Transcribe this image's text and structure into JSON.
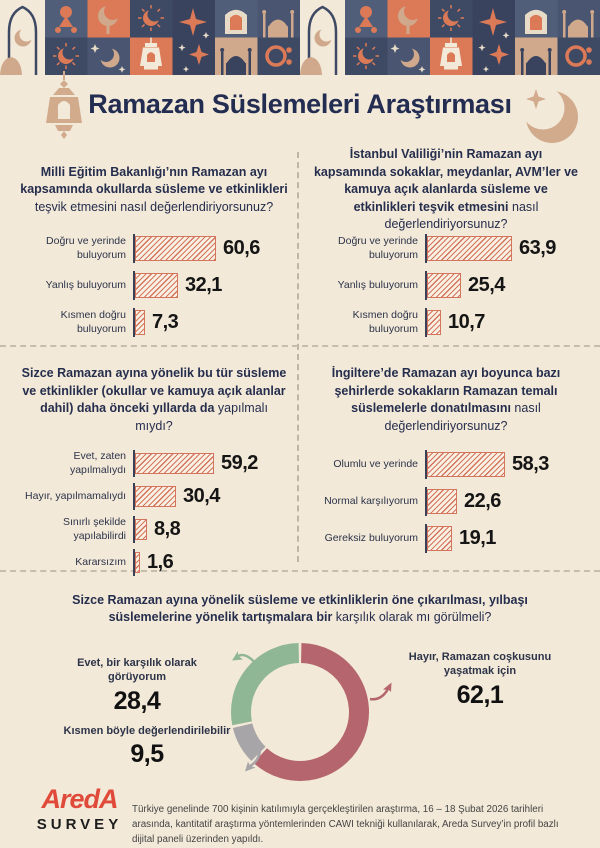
{
  "header": {
    "title": "Ramazan Süslemeleri Araştırması",
    "icons": [
      "tile-pattern-ramadan",
      "lantern-icon",
      "crescent-star-icon"
    ]
  },
  "colors": {
    "background": "#f2e9d8",
    "navy_text": "#232c51",
    "bar_hatch": "#d4745c",
    "axis": "#3a4156",
    "divider": "#c6beac",
    "donut_red": "#b5656d",
    "donut_gray": "#a8a5a8",
    "donut_green": "#8fb795",
    "logo_red": "#e04a3a",
    "tile_navy": "#3e4963",
    "tile_slate": "#515e7a",
    "tile_orange": "#dc7a58",
    "tile_tan": "#d0a98c"
  },
  "chart_data": [
    {
      "type": "bar",
      "question_bold": "Milli Eğitim Bakanlığı’nın Ramazan ayı kapsamında okullarda süsleme ve etkinlikleri",
      "question_rest": " teşvik etmesini nasıl değerlendiriyorsunuz?",
      "categories": [
        "Doğru ve yerinde buluyorum",
        "Yanlış buluyorum",
        "Kısmen doğru buluyorum"
      ],
      "values": [
        60.6,
        32.1,
        7.3
      ],
      "value_labels": [
        "60,6",
        "32,1",
        "7,3"
      ],
      "xlim": [
        0,
        66
      ],
      "orientation": "horizontal"
    },
    {
      "type": "bar",
      "question_bold": "İstanbul Valiliği’nin Ramazan ayı kapsamında sokaklar, meydanlar, AVM’ler ve kamuya açık alanlarda süsleme ve etkinlikleri teşvik etmesini",
      "question_rest": " nasıl değerlendiriyorsunuz?",
      "categories": [
        "Doğru ve yerinde buluyorum",
        "Yanlış buluyorum",
        "Kısmen doğru buluyorum"
      ],
      "values": [
        63.9,
        25.4,
        10.7
      ],
      "value_labels": [
        "63,9",
        "25,4",
        "10,7"
      ],
      "xlim": [
        0,
        66
      ],
      "orientation": "horizontal"
    },
    {
      "type": "bar",
      "question_bold": "Sizce Ramazan ayına yönelik bu tür süsleme ve etkinlikler (okullar ve kamuya açık alanlar dahil) daha önceki yıllarda da",
      "question_rest": " yapılmalı mıydı?",
      "categories": [
        "Evet, zaten yapılmalıydı",
        "Hayır, yapılmamalıydı",
        "Sınırlı şekilde yapılabilirdi",
        "Kararsızım"
      ],
      "values": [
        59.2,
        30.4,
        8.8,
        1.6
      ],
      "value_labels": [
        "59,2",
        "30,4",
        "8,8",
        "1,6"
      ],
      "xlim": [
        0,
        66
      ],
      "orientation": "horizontal"
    },
    {
      "type": "bar",
      "question_bold": "İngiltere’de Ramazan ayı boyunca bazı şehirlerde sokakların Ramazan temalı süslemelerle donatılmasını",
      "question_rest": " nasıl değerlendiriyorsunuz?",
      "categories": [
        "Olumlu ve yerinde",
        "Normal karşılıyorum",
        "Gereksiz buluyorum"
      ],
      "values": [
        58.3,
        22.6,
        19.1
      ],
      "value_labels": [
        "58,3",
        "22,6",
        "19,1"
      ],
      "xlim": [
        0,
        66
      ],
      "orientation": "horizontal"
    },
    {
      "type": "donut",
      "question_bold": "Sizce Ramazan ayına yönelik süsleme ve etkinliklerin öne çıkarılması, yılbaşı süslemelerine yönelik tartışmalara bir",
      "question_rest": " karşılık olarak mı görülmeli?",
      "segments": [
        {
          "label": "Hayır, Ramazan coşkusunu yaşatmak için",
          "value": 62.1,
          "value_label": "62,1",
          "color": "#b5656d"
        },
        {
          "label": "Kısmen böyle değerlendirilebilir",
          "value": 9.5,
          "value_label": "9,5",
          "color": "#a8a5a8"
        },
        {
          "label": "Evet, bir karşılık olarak görüyorum",
          "value": 28.4,
          "value_label": "28,4",
          "color": "#8fb795"
        }
      ],
      "start_angle_deg": 0,
      "direction": "clockwise"
    }
  ],
  "footer": {
    "logo_line1": "AredA",
    "logo_line2": "SURVEY",
    "note": "Türkiye genelinde 700 kişinin katılımıyla gerçekleştirilen araştırma, 16 – 18 Şubat 2026 tarihleri arasında, kantitatif araştırma yöntemlerinden CAWI tekniği kullanılarak, Areda Survey’in profil bazlı dijital paneli üzerinden yapıldı."
  }
}
